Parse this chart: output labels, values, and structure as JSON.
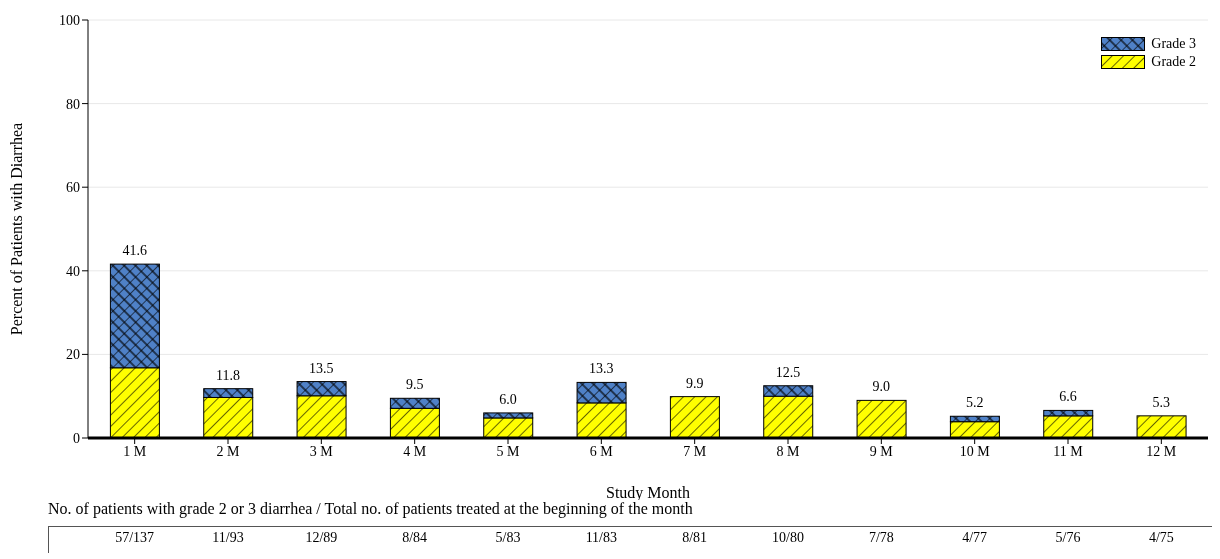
{
  "chart_data": {
    "type": "bar",
    "stacked": true,
    "xlabel": "Study Month",
    "ylabel": "Percent of Patients with Diarrhea",
    "categories": [
      "1 M",
      "2 M",
      "3 M",
      "4 M",
      "5 M",
      "6 M",
      "7 M",
      "8 M",
      "9 M",
      "10 M",
      "11 M",
      "12 M"
    ],
    "series": [
      {
        "name": "Grade 2",
        "color": "#ffff00",
        "values": [
          16.8,
          9.7,
          10.1,
          7.1,
          4.8,
          8.4,
          9.9,
          10.0,
          9.0,
          3.9,
          5.3,
          5.3
        ]
      },
      {
        "name": "Grade 3",
        "color": "#4f81c7",
        "values": [
          24.8,
          2.1,
          3.4,
          2.4,
          1.2,
          4.9,
          0,
          2.5,
          0,
          1.3,
          1.3,
          0
        ]
      }
    ],
    "totals": [
      "41.6",
      "11.8",
      "13.5",
      "9.5",
      "6.0",
      "13.3",
      "9.9",
      "12.5",
      "9.0",
      "5.2",
      "6.6",
      "5.3"
    ],
    "ylim": [
      0,
      100
    ],
    "yticks": [
      0,
      20,
      40,
      60,
      80,
      100
    ],
    "grid": "y",
    "legend": "top right",
    "annotations": [
      "No. of patients with grade 2 or 3 diarrhea / Total no. of patients treated at the beginning of the month",
      "57/137",
      "11/93",
      "12/89",
      "8/84",
      "5/83",
      "11/83",
      "8/81",
      "10/80",
      "7/78",
      "4/77",
      "5/76",
      "4/75"
    ]
  }
}
